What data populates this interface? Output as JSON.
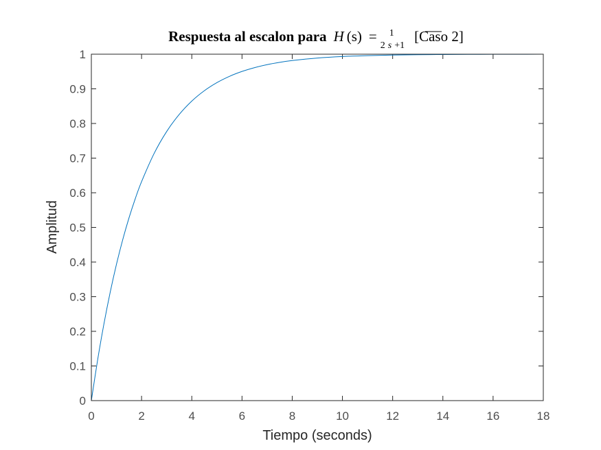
{
  "chart_data": {
    "type": "line",
    "title": {
      "prefix": "Respuesta al escalon para",
      "func_name": "H",
      "func_arg": "(s)",
      "equals": "=",
      "numerator": "1",
      "denominator_lead": "2",
      "denominator_var": "s",
      "denominator_tail": "+1",
      "suffix": "[Caso 2]"
    },
    "xlabel": "Tiempo (seconds)",
    "ylabel": "Amplitud",
    "xlim": [
      0,
      18
    ],
    "ylim": [
      0,
      1
    ],
    "xticks": [
      0,
      2,
      4,
      6,
      8,
      10,
      12,
      14,
      16,
      18
    ],
    "yticks": [
      0,
      0.1,
      0.2,
      0.3,
      0.4,
      0.5,
      0.6,
      0.7,
      0.8,
      0.9,
      1
    ],
    "grid": false,
    "steady_state_line": 1,
    "series": [
      {
        "color": "#0072bd",
        "x": [
          0,
          0.25,
          0.5,
          0.75,
          1,
          1.25,
          1.5,
          1.75,
          2,
          2.5,
          3,
          3.5,
          4,
          4.5,
          5,
          5.5,
          6,
          6.5,
          7,
          7.5,
          8,
          9,
          10,
          11,
          12,
          13,
          14,
          15,
          16,
          17,
          18
        ],
        "y": [
          0,
          0.1175,
          0.2212,
          0.3127,
          0.3935,
          0.4647,
          0.5276,
          0.5831,
          0.6321,
          0.7135,
          0.7769,
          0.8262,
          0.8647,
          0.8946,
          0.9179,
          0.9361,
          0.9502,
          0.9612,
          0.9698,
          0.9765,
          0.9817,
          0.9889,
          0.9933,
          0.9959,
          0.9975,
          0.9985,
          0.9991,
          0.9994,
          0.9997,
          0.9998,
          0.9999
        ]
      }
    ]
  }
}
